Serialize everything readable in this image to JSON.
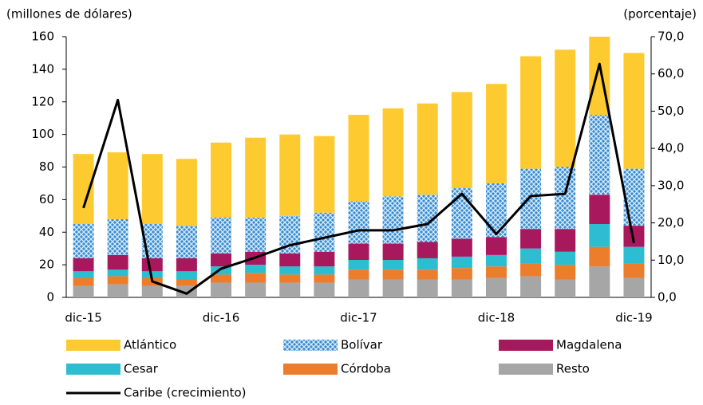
{
  "chart_data": {
    "type": "bar",
    "stacked": true,
    "y_label": "(millones  de dólares)",
    "y2_label": "(porcentaje)",
    "categories": [
      "dic-15",
      null,
      null,
      null,
      "dic-16",
      null,
      null,
      null,
      "dic-17",
      null,
      null,
      null,
      "dic-18",
      null,
      null,
      null,
      "dic-19"
    ],
    "ylim": [
      0,
      160
    ],
    "yticks": [
      0,
      20,
      40,
      60,
      80,
      100,
      120,
      140,
      160
    ],
    "y2lim": [
      0,
      70
    ],
    "y2ticks": [
      {
        "value": 0,
        "label": "0,0"
      },
      {
        "value": 10,
        "label": "10,0"
      },
      {
        "value": 20,
        "label": "20,0"
      },
      {
        "value": 30,
        "label": "30,0"
      },
      {
        "value": 40,
        "label": "40,0"
      },
      {
        "value": 50,
        "label": "50,0"
      },
      {
        "value": 60,
        "label": "60,0"
      },
      {
        "value": 70,
        "label": "70,0"
      }
    ],
    "grid": false,
    "series": [
      {
        "name": "Atlántico",
        "color": "#fdca2f",
        "values": [
          43,
          41,
          43,
          41,
          46,
          49,
          50,
          47,
          53,
          54,
          56,
          59,
          61,
          69,
          72,
          48,
          71
        ]
      },
      {
        "name": "Bolívar",
        "color": "#3a8bd0",
        "pattern": "crosshatch",
        "values": [
          21,
          22,
          21,
          20,
          22,
          21,
          23,
          24,
          26,
          29,
          29,
          31,
          33,
          37,
          38,
          49,
          35
        ]
      },
      {
        "name": "Magdalena",
        "color": "#a8185c",
        "values": [
          8,
          9,
          8,
          8,
          8,
          8,
          8,
          9,
          10,
          10,
          10,
          11,
          11,
          12,
          14,
          18,
          13
        ]
      },
      {
        "name": "Cesar",
        "color": "#2dbdd0",
        "values": [
          4,
          4,
          4,
          5,
          5,
          5,
          5,
          5,
          6,
          6,
          7,
          7,
          7,
          9,
          8,
          14,
          10
        ]
      },
      {
        "name": "Córdoba",
        "color": "#ec7d2c",
        "values": [
          5,
          5,
          5,
          4,
          5,
          6,
          5,
          5,
          6,
          6,
          6,
          7,
          7,
          8,
          9,
          12,
          9
        ]
      },
      {
        "name": "Resto",
        "color": "#a6a6a6",
        "values": [
          7,
          8,
          7,
          7,
          9,
          9,
          9,
          9,
          11,
          11,
          11,
          11,
          12,
          13,
          11,
          19,
          12
        ]
      },
      {
        "name": "Caribe (crecimiento)",
        "color": "#000000",
        "type": "line",
        "axis": "y2",
        "values": [
          24,
          53,
          4.3,
          1,
          7.7,
          10.7,
          14,
          16,
          18,
          18,
          19.7,
          27.8,
          17,
          27.2,
          27.8,
          62.7,
          14.6
        ]
      }
    ]
  }
}
